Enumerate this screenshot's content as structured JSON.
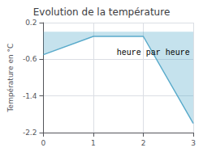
{
  "chart_data": {
    "type": "line",
    "title": "Evolution de la température",
    "ylabel": "Température en °C",
    "x": [
      0,
      1,
      2,
      3
    ],
    "values": [
      -0.5,
      -0.1,
      -0.1,
      -2.0
    ],
    "color": "#5aabcb",
    "xlim": [
      0,
      3
    ],
    "xticks": [
      0,
      1,
      2,
      3
    ],
    "ylim": [
      -2.2,
      0.2
    ],
    "yticks": [
      0.2,
      -0.6,
      -1.4,
      -2.2
    ],
    "annotations": [
      {
        "text": "heure par heure",
        "x": 2.2,
        "y": -0.38
      }
    ],
    "grid": true
  }
}
